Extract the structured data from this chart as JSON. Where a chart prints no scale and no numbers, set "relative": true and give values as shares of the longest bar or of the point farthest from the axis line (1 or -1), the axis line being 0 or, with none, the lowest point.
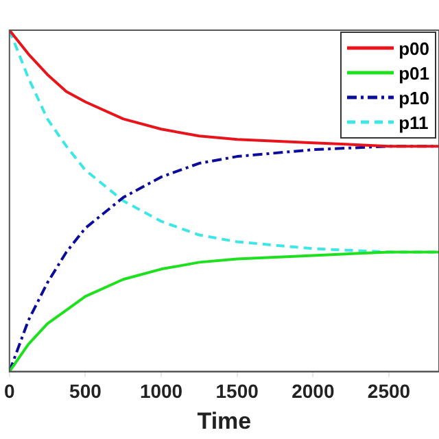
{
  "chart_data": {
    "type": "line",
    "xlabel": "Time",
    "relative": true,
    "legend": "top right",
    "grid": false,
    "marker": "none",
    "tick_labels": "x",
    "x": [
      0,
      125,
      250,
      375,
      500,
      750,
      1000,
      1250,
      1500,
      2000,
      2500,
      2830
    ],
    "xlim": [
      0,
      2830
    ],
    "xticks": [
      0,
      500,
      1000,
      1500,
      2000,
      2500
    ],
    "series": [
      {
        "name": "p00",
        "color": "#e8141c",
        "line_style": "solid",
        "values": [
          1,
          0.93,
          0.87,
          0.82,
          0.79,
          0.74,
          0.71,
          0.69,
          0.68,
          0.67,
          0.66,
          0.66
        ]
      },
      {
        "name": "p01",
        "color": "#1ee01e",
        "line_style": "solid",
        "values": [
          0,
          0.08,
          0.14,
          0.18,
          0.22,
          0.27,
          0.3,
          0.32,
          0.33,
          0.34,
          0.35,
          0.35
        ]
      },
      {
        "name": "p10",
        "color": "#0c0c9a",
        "line_style": "dashdot",
        "values": [
          0,
          0.15,
          0.26,
          0.35,
          0.42,
          0.51,
          0.57,
          0.61,
          0.63,
          0.65,
          0.66,
          0.66
        ]
      },
      {
        "name": "p11",
        "color": "#3ee6e6",
        "line_style": "dashed",
        "values": [
          1,
          0.86,
          0.74,
          0.66,
          0.59,
          0.5,
          0.44,
          0.4,
          0.38,
          0.36,
          0.35,
          0.35
        ]
      }
    ]
  }
}
